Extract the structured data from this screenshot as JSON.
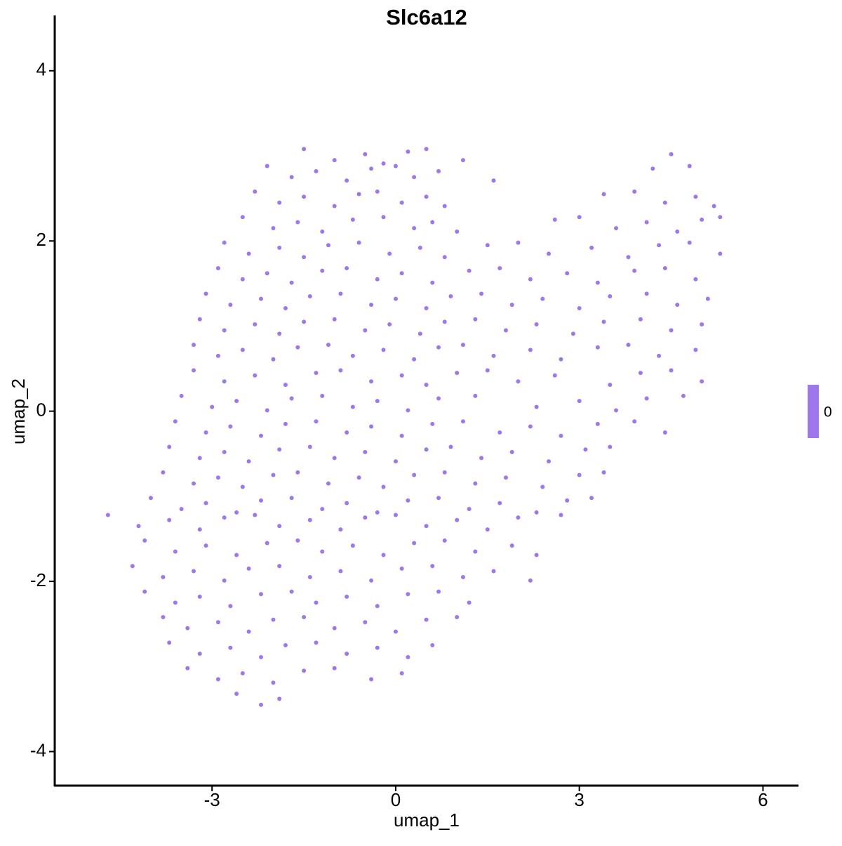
{
  "chart_data": {
    "type": "scatter",
    "title": "Slc6a12",
    "xlabel": "umap_1",
    "ylabel": "umap_2",
    "xlim": [
      -5.57,
      6.58
    ],
    "ylim": [
      -4.4,
      4.65
    ],
    "xticks": [
      -3,
      0,
      3,
      6
    ],
    "yticks": [
      -4,
      -2,
      0,
      2,
      4
    ],
    "grid": false,
    "series": [
      {
        "color": "#9e78ea",
        "x": [
          -1.5,
          -1.0,
          -0.5,
          -0.2,
          0.2,
          0.5,
          1.1,
          4.5,
          -2.1,
          -1.7,
          -1.3,
          -0.8,
          -0.4,
          0.0,
          0.3,
          0.7,
          1.6,
          4.2,
          4.8,
          -2.3,
          -1.9,
          -1.5,
          -1.0,
          -0.6,
          -0.3,
          0.1,
          0.5,
          0.8,
          3.4,
          3.9,
          4.4,
          4.9,
          5.2,
          -2.5,
          -2.0,
          -1.6,
          -1.2,
          -0.7,
          -0.2,
          0.3,
          0.6,
          1.0,
          2.6,
          3.0,
          3.6,
          4.1,
          4.6,
          5.0,
          5.3,
          -2.8,
          -2.4,
          -1.9,
          -1.5,
          -1.1,
          -0.6,
          -0.1,
          0.4,
          0.8,
          1.5,
          2.0,
          2.5,
          3.2,
          3.8,
          4.3,
          4.8,
          5.3,
          -2.9,
          -2.5,
          -2.1,
          -1.7,
          -1.2,
          -0.8,
          -0.3,
          0.1,
          0.6,
          1.2,
          1.7,
          2.2,
          2.8,
          3.3,
          3.9,
          4.4,
          4.9,
          -3.1,
          -2.7,
          -2.2,
          -1.8,
          -1.4,
          -0.9,
          -0.4,
          0.0,
          0.5,
          0.9,
          1.4,
          1.9,
          2.4,
          3.0,
          3.5,
          4.1,
          4.6,
          5.1,
          -3.2,
          -2.8,
          -2.3,
          -1.9,
          -1.5,
          -1.0,
          -0.5,
          -0.1,
          0.4,
          0.8,
          1.3,
          1.8,
          2.3,
          2.9,
          3.4,
          4.0,
          4.5,
          5.0,
          -3.3,
          -2.9,
          -2.5,
          -2.0,
          -1.6,
          -1.1,
          -0.7,
          -0.2,
          0.3,
          0.7,
          1.1,
          1.6,
          2.2,
          2.7,
          3.3,
          3.8,
          4.3,
          4.9,
          -3.3,
          -2.8,
          -2.3,
          -1.8,
          -1.3,
          -0.9,
          -0.4,
          0.1,
          0.5,
          1.0,
          1.5,
          2.0,
          2.6,
          3.5,
          4.0,
          4.5,
          5.0,
          -3.5,
          -3.0,
          -2.6,
          -2.1,
          -1.7,
          -1.2,
          -0.7,
          -0.3,
          0.2,
          0.7,
          1.3,
          2.3,
          3.0,
          3.6,
          4.1,
          4.7,
          -3.6,
          -3.1,
          -2.7,
          -2.2,
          -1.8,
          -1.3,
          -0.8,
          -0.4,
          0.1,
          0.6,
          1.1,
          1.7,
          2.2,
          2.7,
          3.3,
          3.9,
          4.4,
          -3.7,
          -3.2,
          -2.8,
          -2.4,
          -1.9,
          -1.4,
          -1.0,
          -0.5,
          0.0,
          0.5,
          0.9,
          1.4,
          1.9,
          2.5,
          3.1,
          3.5,
          -3.8,
          -3.3,
          -2.9,
          -2.5,
          -2.0,
          -1.6,
          -1.1,
          -0.6,
          -0.2,
          0.3,
          0.8,
          1.3,
          1.8,
          2.4,
          3.0,
          3.4,
          -4.0,
          -3.5,
          -3.1,
          -2.6,
          -2.2,
          -1.7,
          -1.2,
          -0.8,
          -0.3,
          0.2,
          0.7,
          1.2,
          1.7,
          2.3,
          2.8,
          3.2,
          -4.7,
          -4.2,
          -3.7,
          -3.2,
          -2.8,
          -2.3,
          -1.9,
          -1.4,
          -0.9,
          -0.5,
          0.0,
          0.5,
          1.0,
          1.5,
          2.0,
          2.7,
          -4.1,
          -3.6,
          -3.1,
          -2.6,
          -2.1,
          -1.6,
          -1.2,
          -0.7,
          -0.2,
          0.3,
          0.8,
          1.3,
          1.9,
          2.3,
          -4.3,
          -3.8,
          -3.3,
          -2.8,
          -2.4,
          -1.9,
          -1.4,
          -0.9,
          -0.4,
          0.1,
          0.6,
          1.1,
          1.6,
          2.2,
          -4.1,
          -3.6,
          -3.2,
          -2.7,
          -2.2,
          -1.7,
          -1.3,
          -0.8,
          -0.3,
          0.2,
          0.7,
          1.2,
          -3.8,
          -3.4,
          -2.9,
          -2.4,
          -2.0,
          -1.5,
          -1.0,
          -0.5,
          0.0,
          0.5,
          1.0,
          -3.7,
          -3.2,
          -2.7,
          -2.2,
          -1.8,
          -1.3,
          -0.8,
          -0.3,
          0.2,
          0.6,
          -3.4,
          -2.9,
          -2.5,
          -2.0,
          -1.5,
          -1.0,
          -0.4,
          0.1,
          -2.6,
          -2.2,
          -1.9
        ],
        "values": [
          3.08,
          2.95,
          3.02,
          2.91,
          3.05,
          3.08,
          2.95,
          3.02,
          2.88,
          2.75,
          2.82,
          2.71,
          2.85,
          2.88,
          2.75,
          2.82,
          2.71,
          2.85,
          2.88,
          2.58,
          2.45,
          2.52,
          2.41,
          2.55,
          2.58,
          2.45,
          2.52,
          2.41,
          2.55,
          2.58,
          2.45,
          2.52,
          2.41,
          2.28,
          2.15,
          2.22,
          2.11,
          2.25,
          2.28,
          2.15,
          2.22,
          2.11,
          2.25,
          2.28,
          2.15,
          2.22,
          2.11,
          2.25,
          2.28,
          1.98,
          1.85,
          1.92,
          1.81,
          1.95,
          1.98,
          1.85,
          1.92,
          1.81,
          1.95,
          1.98,
          1.85,
          1.92,
          1.81,
          1.95,
          1.98,
          1.85,
          1.68,
          1.55,
          1.62,
          1.51,
          1.65,
          1.68,
          1.55,
          1.62,
          1.51,
          1.65,
          1.68,
          1.55,
          1.62,
          1.51,
          1.65,
          1.68,
          1.55,
          1.38,
          1.25,
          1.32,
          1.21,
          1.35,
          1.38,
          1.25,
          1.32,
          1.21,
          1.35,
          1.38,
          1.25,
          1.32,
          1.21,
          1.35,
          1.38,
          1.25,
          1.32,
          1.08,
          0.95,
          1.02,
          0.91,
          1.05,
          1.08,
          0.95,
          1.02,
          0.91,
          1.05,
          1.08,
          0.95,
          1.02,
          0.91,
          1.05,
          1.08,
          0.95,
          1.02,
          0.78,
          0.65,
          0.72,
          0.61,
          0.75,
          0.78,
          0.65,
          0.72,
          0.61,
          0.75,
          0.78,
          0.65,
          0.72,
          0.61,
          0.75,
          0.78,
          0.65,
          0.72,
          0.48,
          0.35,
          0.42,
          0.31,
          0.45,
          0.48,
          0.35,
          0.42,
          0.31,
          0.45,
          0.48,
          0.35,
          0.42,
          0.31,
          0.45,
          0.48,
          0.35,
          0.18,
          0.05,
          0.12,
          0.01,
          0.15,
          0.18,
          0.05,
          0.12,
          0.01,
          0.15,
          0.18,
          0.05,
          0.12,
          0.01,
          0.15,
          0.18,
          -0.12,
          -0.25,
          -0.18,
          -0.29,
          -0.15,
          -0.12,
          -0.25,
          -0.18,
          -0.29,
          -0.15,
          -0.12,
          -0.25,
          -0.18,
          -0.29,
          -0.15,
          -0.12,
          -0.25,
          -0.42,
          -0.55,
          -0.48,
          -0.59,
          -0.45,
          -0.42,
          -0.55,
          -0.48,
          -0.59,
          -0.45,
          -0.42,
          -0.55,
          -0.48,
          -0.59,
          -0.45,
          -0.42,
          -0.72,
          -0.85,
          -0.78,
          -0.89,
          -0.75,
          -0.72,
          -0.85,
          -0.78,
          -0.89,
          -0.75,
          -0.72,
          -0.85,
          -0.78,
          -0.89,
          -0.75,
          -0.72,
          -1.02,
          -1.15,
          -1.08,
          -1.19,
          -1.05,
          -1.02,
          -1.15,
          -1.08,
          -1.19,
          -1.05,
          -1.02,
          -1.15,
          -1.08,
          -1.19,
          -1.05,
          -1.02,
          -1.22,
          -1.35,
          -1.28,
          -1.39,
          -1.25,
          -1.22,
          -1.35,
          -1.28,
          -1.39,
          -1.25,
          -1.22,
          -1.35,
          -1.28,
          -1.39,
          -1.25,
          -1.22,
          -1.52,
          -1.65,
          -1.58,
          -1.69,
          -1.55,
          -1.52,
          -1.65,
          -1.58,
          -1.69,
          -1.55,
          -1.52,
          -1.65,
          -1.58,
          -1.69,
          -1.82,
          -1.95,
          -1.88,
          -1.99,
          -1.85,
          -1.82,
          -1.95,
          -1.88,
          -1.99,
          -1.85,
          -1.82,
          -1.95,
          -1.88,
          -1.99,
          -2.12,
          -2.25,
          -2.18,
          -2.29,
          -2.15,
          -2.12,
          -2.25,
          -2.18,
          -2.29,
          -2.15,
          -2.12,
          -2.25,
          -2.42,
          -2.55,
          -2.48,
          -2.59,
          -2.45,
          -2.42,
          -2.55,
          -2.48,
          -2.59,
          -2.45,
          -2.42,
          -2.72,
          -2.85,
          -2.78,
          -2.89,
          -2.75,
          -2.72,
          -2.85,
          -2.78,
          -2.89,
          -2.75,
          -3.02,
          -3.15,
          -3.08,
          -3.19,
          -3.05,
          -3.02,
          -3.15,
          -3.08,
          -3.32,
          -3.45,
          -3.38
        ]
      }
    ],
    "colorbar": {
      "ticks": [
        0
      ],
      "color": "#9e78ea"
    }
  }
}
